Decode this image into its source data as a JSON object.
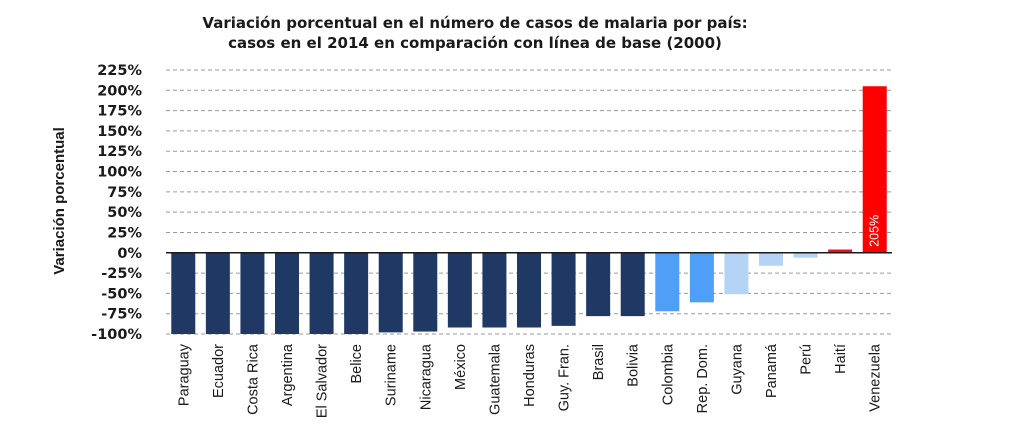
{
  "chart_data": {
    "type": "bar",
    "title_line1": "Variación porcentual en el número de casos de malaria por país:",
    "title_line2": "casos en el 2014 en comparación con línea de base (2000)",
    "ylabel": "Variación porcentual",
    "xlabel": "",
    "ylim": [
      -100,
      225
    ],
    "yticks": [
      -100,
      -75,
      -50,
      -25,
      0,
      25,
      50,
      75,
      100,
      125,
      150,
      175,
      200,
      225
    ],
    "ytick_suffix": "%",
    "grid": "horizontal dashed",
    "categories": [
      "Paraguay",
      "Ecuador",
      "Costa Rica",
      "Argentina",
      "El Salvador",
      "Belice",
      "Suriname",
      "Nicaragua",
      "México",
      "Guatemala",
      "Honduras",
      "Guy. Fran.",
      "Brasil",
      "Bolivia",
      "Colombia",
      "Rep. Dom.",
      "Guyana",
      "Panamá",
      "Perú",
      "Haití",
      "Venezuela"
    ],
    "values": [
      -100,
      -100,
      -100,
      -100,
      -100,
      -100,
      -98,
      -97,
      -92,
      -92,
      -92,
      -90,
      -78,
      -78,
      -72,
      -61,
      -51,
      -16,
      -6,
      4,
      205
    ],
    "colors": [
      "#1f3864",
      "#1f3864",
      "#1f3864",
      "#1f3864",
      "#1f3864",
      "#1f3864",
      "#1f3864",
      "#1f3864",
      "#1f3864",
      "#1f3864",
      "#1f3864",
      "#1f3864",
      "#1f3864",
      "#1f3864",
      "#4f9ef8",
      "#4f9ef8",
      "#b4d3f5",
      "#b4d3f5",
      "#b4d3f5",
      "#e8121b",
      "#ff0000"
    ],
    "data_labels": [
      {
        "category": "Venezuela",
        "text": "205%"
      }
    ]
  }
}
